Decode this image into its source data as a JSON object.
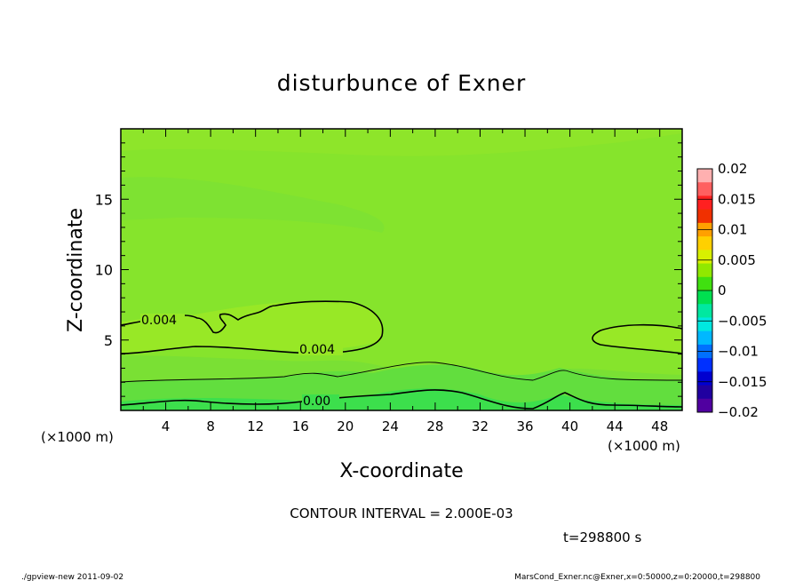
{
  "chart_data": {
    "type": "heatmap",
    "title": "disturbunce of Exner",
    "xlabel": "X-coordinate",
    "ylabel": "Z-coordinate",
    "x_unit_left": "(×1000 m)",
    "x_unit_right": "(×1000 m)",
    "xlim": [
      0,
      50
    ],
    "ylim": [
      0,
      20
    ],
    "x_ticks": [
      "4",
      "8",
      "12",
      "16",
      "20",
      "24",
      "28",
      "32",
      "36",
      "40",
      "44",
      "48"
    ],
    "y_ticks": [
      "5",
      "10",
      "15"
    ],
    "contour_labels": [
      "0.004",
      "0.004",
      "0.00"
    ],
    "contour_interval_text": "CONTOUR INTERVAL = 2.000E-03",
    "time_text": "t=298800 s",
    "colorbar": {
      "labels": [
        "0.02",
        "0.015",
        "0.01",
        "0.005",
        "0",
        "−0.005",
        "−0.01",
        "−0.015",
        "−0.02"
      ],
      "levels": [
        0.02,
        0.015,
        0.01,
        0.005,
        0,
        -0.005,
        -0.01,
        -0.015,
        -0.02
      ],
      "colors": [
        "#ffb0b0",
        "#ff6060",
        "#ff2020",
        "#f03000",
        "#ffa000",
        "#ffd000",
        "#d8f000",
        "#90e800",
        "#40e010",
        "#00e050",
        "#00e8a0",
        "#00e8e0",
        "#00b8ff",
        "#0070ff",
        "#0030ff",
        "#0000d0",
        "#2000a0",
        "#5000a0"
      ]
    },
    "colors": {
      "background": "#88e62a",
      "band_light": "#a0ea24",
      "band_mid": "#68e03a",
      "band_dark": "#30e050"
    }
  },
  "footer": {
    "left": "./gpview-new   2011-09-02",
    "right": "MarsCond_Exner.nc@Exner,x=0:50000,z=0:20000,t=298800"
  }
}
